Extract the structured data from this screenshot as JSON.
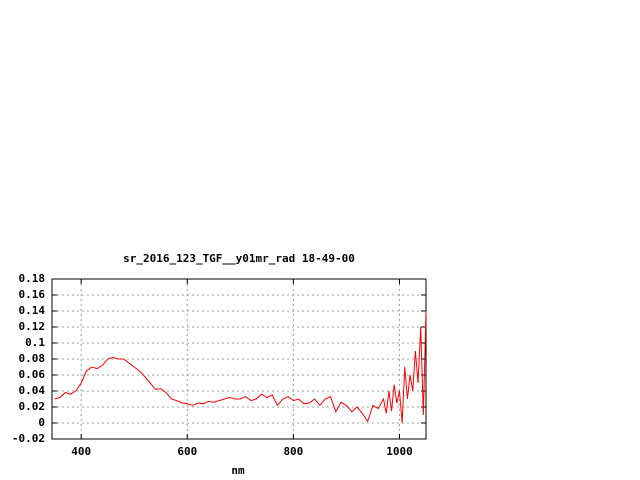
{
  "chart_data": {
    "type": "line",
    "title": "sr_2016_123_TGF__y01mr_rad 18-49-00",
    "x_label": "nm",
    "x": [
      350,
      360,
      370,
      380,
      390,
      400,
      410,
      420,
      430,
      440,
      450,
      460,
      470,
      480,
      490,
      500,
      510,
      520,
      530,
      540,
      550,
      560,
      570,
      580,
      590,
      600,
      610,
      620,
      630,
      640,
      650,
      660,
      670,
      680,
      690,
      700,
      710,
      720,
      730,
      740,
      750,
      760,
      770,
      780,
      790,
      800,
      810,
      820,
      830,
      840,
      850,
      860,
      870,
      880,
      890,
      900,
      910,
      920,
      930,
      940,
      950,
      960,
      970,
      975,
      980,
      985,
      990,
      995,
      1000,
      1005,
      1010,
      1015,
      1020,
      1025,
      1030,
      1035,
      1040,
      1045,
      1050
    ],
    "values": [
      0.03,
      0.032,
      0.038,
      0.036,
      0.04,
      0.05,
      0.065,
      0.07,
      0.068,
      0.072,
      0.08,
      0.082,
      0.08,
      0.08,
      0.075,
      0.07,
      0.065,
      0.058,
      0.05,
      0.042,
      0.043,
      0.038,
      0.03,
      0.028,
      0.025,
      0.024,
      0.022,
      0.025,
      0.024,
      0.027,
      0.026,
      0.028,
      0.03,
      0.032,
      0.03,
      0.03,
      0.033,
      0.028,
      0.03,
      0.036,
      0.032,
      0.035,
      0.022,
      0.03,
      0.033,
      0.028,
      0.03,
      0.024,
      0.025,
      0.03,
      0.022,
      0.03,
      0.033,
      0.014,
      0.026,
      0.022,
      0.014,
      0.02,
      0.012,
      0.002,
      0.022,
      0.018,
      0.03,
      0.012,
      0.04,
      0.015,
      0.048,
      0.025,
      0.04,
      0.0,
      0.07,
      0.03,
      0.06,
      0.04,
      0.09,
      0.05,
      0.12,
      0.01,
      0.14
    ],
    "color": "#ff0000",
    "xlim": [
      345,
      1050
    ],
    "xticks": [
      400,
      600,
      800,
      1000
    ],
    "ylim": [
      -0.02,
      0.18
    ],
    "yticks": [
      -0.02,
      0,
      0.02,
      0.04,
      0.06,
      0.08,
      0.1,
      0.12,
      0.14,
      0.16,
      0.18
    ],
    "grid": true
  }
}
